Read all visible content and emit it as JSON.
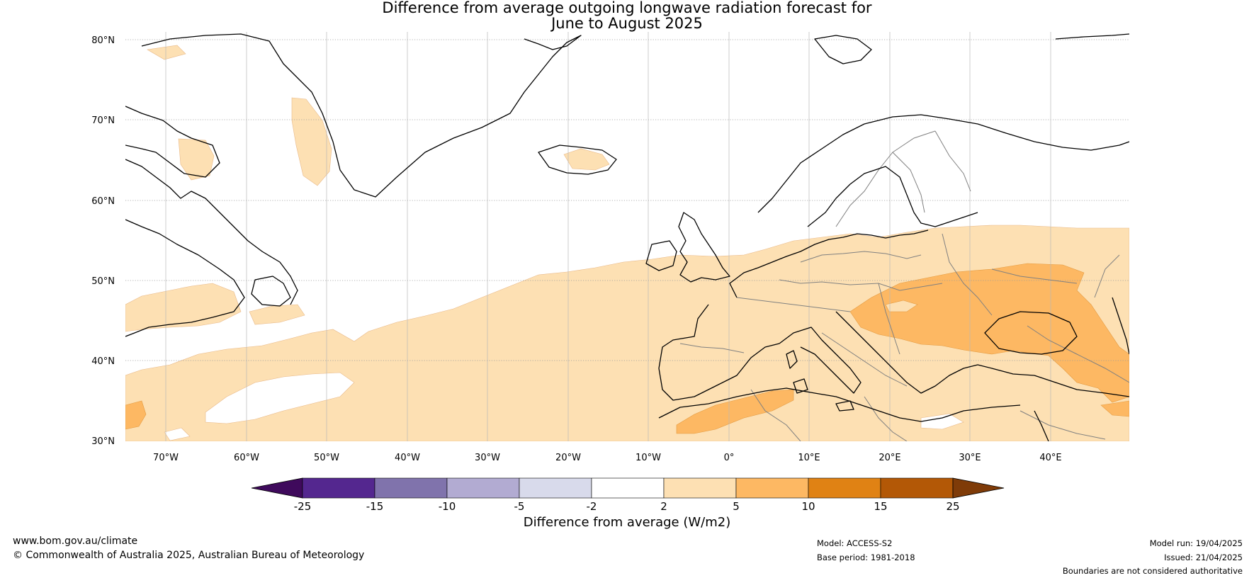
{
  "title_line1": "Difference from average outgoing longwave radiation forecast for",
  "title_line2": "June to August 2025",
  "lat_labels": [
    "80°N",
    "70°N",
    "60°N",
    "50°N",
    "40°N",
    "30°N"
  ],
  "lon_labels": [
    "70°W",
    "60°W",
    "50°W",
    "40°W",
    "30°W",
    "20°W",
    "10°W",
    "0°",
    "10°E",
    "20°E",
    "30°E",
    "40°E"
  ],
  "colorbar": {
    "title": "Difference from average (W/m2)",
    "ticks": [
      "-25",
      "-15",
      "-10",
      "-5",
      "-2",
      "2",
      "5",
      "10",
      "15",
      "25"
    ],
    "colors": [
      "#3f0a5c",
      "#54278f",
      "#8073ac",
      "#b2abd2",
      "#d8daeb",
      "#ffffff",
      "#fde0b3",
      "#fdb863",
      "#e08214",
      "#b35806",
      "#7f3b08"
    ]
  },
  "colors": {
    "anomaly_2_5": "#fde0b3",
    "anomaly_5_10": "#fdb863",
    "coastline": "#000000",
    "borders": "#808080",
    "gridline": "#999999"
  },
  "footer": {
    "website": "www.bom.gov.au/climate",
    "copyright": "© Commonwealth of Australia 2025, Australian Bureau of Meteorology",
    "model": "Model: ACCESS-S2",
    "base_period": "Base period: 1981-2018",
    "model_run": "Model run: 19/04/2025",
    "issued": "Issued: 21/04/2025",
    "disclaimer": "Boundaries are not considered authoritative"
  }
}
